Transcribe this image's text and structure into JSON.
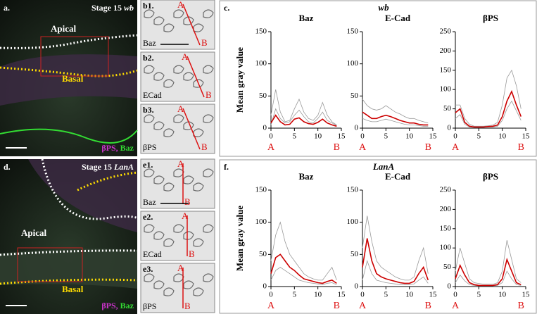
{
  "panels": {
    "a": {
      "label": "a.",
      "stage": "Stage 15",
      "genotype": "wb",
      "apical": "Apical",
      "basal": "Basal",
      "stains": [
        "βPS,",
        "Baz"
      ]
    },
    "d": {
      "label": "d.",
      "stage": "Stage 15",
      "genotype": "LanA",
      "apical": "Apical",
      "basal": "Basal",
      "stains": [
        "βPS,",
        "Baz"
      ]
    },
    "b": [
      {
        "label": "b1.",
        "stain": "Baz",
        "start": "A",
        "end": "B"
      },
      {
        "label": "b2.",
        "stain": "ECad",
        "start": "A",
        "end": "B"
      },
      {
        "label": "b3.",
        "stain": "βPS",
        "start": "A",
        "end": "B"
      }
    ],
    "e": [
      {
        "label": "e1.",
        "stain": "Baz",
        "start": "A",
        "end": "B"
      },
      {
        "label": "e2.",
        "stain": "ECad",
        "start": "A",
        "end": "B"
      },
      {
        "label": "e3.",
        "stain": "βPS",
        "start": "A",
        "end": "B"
      }
    ]
  },
  "plot_groups": [
    {
      "label": "c.",
      "title": "wb",
      "ylabel": "Mean gray value"
    },
    {
      "label": "f.",
      "title": "LanA",
      "ylabel": "Mean gray value"
    }
  ],
  "chart_data": [
    {
      "type": "line",
      "title": "Baz",
      "start_label": "A",
      "end_label": "B",
      "x": [
        0,
        1,
        2,
        3,
        4,
        5,
        6,
        7,
        8,
        9,
        10,
        11,
        12,
        13,
        14
      ],
      "xlim": [
        0,
        15
      ],
      "xticks": [
        0,
        5,
        10,
        15
      ],
      "ylim": [
        0,
        150
      ],
      "yticks": [
        0,
        50,
        100,
        150
      ],
      "series": [
        {
          "color": "#999999",
          "values": [
            20,
            60,
            25,
            10,
            12,
            30,
            45,
            25,
            15,
            12,
            20,
            40,
            20,
            10,
            5
          ]
        },
        {
          "color": "#999999",
          "values": [
            5,
            30,
            15,
            8,
            10,
            20,
            28,
            18,
            10,
            8,
            15,
            25,
            12,
            8,
            4
          ]
        },
        {
          "color": "#cc0000",
          "values": [
            8,
            20,
            10,
            5,
            6,
            14,
            16,
            10,
            7,
            6,
            9,
            14,
            8,
            5,
            3
          ]
        }
      ]
    },
    {
      "type": "line",
      "title": "E-Cad",
      "start_label": "A",
      "end_label": "B",
      "x": [
        0,
        1,
        2,
        3,
        4,
        5,
        6,
        7,
        8,
        9,
        10,
        11,
        12,
        13,
        14
      ],
      "xlim": [
        0,
        15
      ],
      "xticks": [
        0,
        5,
        10,
        15
      ],
      "ylim": [
        0,
        150
      ],
      "yticks": [
        0,
        50,
        100,
        150
      ],
      "series": [
        {
          "color": "#999999",
          "values": [
            45,
            35,
            30,
            28,
            30,
            35,
            30,
            25,
            22,
            18,
            15,
            15,
            12,
            10,
            8
          ]
        },
        {
          "color": "#999999",
          "values": [
            15,
            12,
            10,
            10,
            12,
            14,
            12,
            10,
            8,
            6,
            5,
            5,
            4,
            3,
            3
          ]
        },
        {
          "color": "#cc0000",
          "values": [
            25,
            20,
            15,
            15,
            18,
            20,
            18,
            15,
            12,
            10,
            8,
            8,
            6,
            5,
            5
          ]
        }
      ]
    },
    {
      "type": "line",
      "title": "βPS",
      "start_label": "A",
      "end_label": "B",
      "x": [
        0,
        1,
        2,
        3,
        4,
        5,
        6,
        7,
        8,
        9,
        10,
        11,
        12,
        13,
        14
      ],
      "xlim": [
        0,
        15
      ],
      "xticks": [
        0,
        5,
        10,
        15
      ],
      "ylim": [
        0,
        250
      ],
      "yticks": [
        0,
        50,
        100,
        150,
        200,
        250
      ],
      "series": [
        {
          "color": "#999999",
          "values": [
            60,
            60,
            25,
            10,
            5,
            5,
            5,
            6,
            8,
            15,
            60,
            130,
            150,
            110,
            50
          ]
        },
        {
          "color": "#999999",
          "values": [
            25,
            35,
            10,
            3,
            2,
            2,
            2,
            3,
            3,
            5,
            20,
            50,
            70,
            45,
            20
          ]
        },
        {
          "color": "#cc0000",
          "values": [
            40,
            50,
            15,
            5,
            3,
            3,
            3,
            4,
            5,
            8,
            30,
            70,
            95,
            60,
            30
          ]
        }
      ]
    },
    {
      "type": "line",
      "title": "Baz",
      "start_label": "A",
      "end_label": "B",
      "x": [
        0,
        1,
        2,
        3,
        4,
        5,
        6,
        7,
        8,
        9,
        10,
        11,
        12,
        13,
        14
      ],
      "xlim": [
        0,
        15
      ],
      "xticks": [
        0,
        5,
        10,
        15
      ],
      "ylim": [
        0,
        150
      ],
      "yticks": [
        0,
        50,
        100,
        150
      ],
      "series": [
        {
          "color": "#999999",
          "values": [
            40,
            80,
            100,
            70,
            50,
            40,
            30,
            20,
            15,
            12,
            10,
            10,
            20,
            30,
            10
          ]
        },
        {
          "color": "#999999",
          "values": [
            10,
            25,
            30,
            25,
            20,
            15,
            10,
            8,
            6,
            5,
            4,
            3,
            5,
            6,
            3
          ]
        },
        {
          "color": "#cc0000",
          "values": [
            20,
            45,
            50,
            40,
            30,
            25,
            18,
            12,
            10,
            8,
            6,
            5,
            8,
            10,
            5
          ]
        }
      ]
    },
    {
      "type": "line",
      "title": "E-Cad",
      "start_label": "A",
      "end_label": "B",
      "x": [
        0,
        1,
        2,
        3,
        4,
        5,
        6,
        7,
        8,
        9,
        10,
        11,
        12,
        13,
        14
      ],
      "xlim": [
        0,
        15
      ],
      "xticks": [
        0,
        5,
        10,
        15
      ],
      "ylim": [
        0,
        150
      ],
      "yticks": [
        0,
        50,
        100,
        150
      ],
      "series": [
        {
          "color": "#999999",
          "values": [
            60,
            110,
            70,
            40,
            30,
            25,
            20,
            15,
            12,
            10,
            10,
            15,
            40,
            60,
            20
          ]
        },
        {
          "color": "#999999",
          "values": [
            10,
            40,
            20,
            10,
            8,
            6,
            5,
            4,
            3,
            3,
            3,
            4,
            10,
            15,
            5
          ]
        },
        {
          "color": "#cc0000",
          "values": [
            30,
            75,
            40,
            20,
            15,
            12,
            10,
            8,
            6,
            5,
            5,
            8,
            20,
            30,
            10
          ]
        }
      ]
    },
    {
      "type": "line",
      "title": "βPS",
      "start_label": "A",
      "end_label": "B",
      "x": [
        0,
        1,
        2,
        3,
        4,
        5,
        6,
        7,
        8,
        9,
        10,
        11,
        12,
        13,
        14
      ],
      "xlim": [
        0,
        15
      ],
      "xticks": [
        0,
        5,
        10,
        15
      ],
      "ylim": [
        0,
        250
      ],
      "yticks": [
        0,
        50,
        100,
        150,
        200,
        250
      ],
      "series": [
        {
          "color": "#999999",
          "values": [
            40,
            100,
            60,
            20,
            10,
            8,
            6,
            6,
            6,
            10,
            40,
            120,
            70,
            20,
            10
          ]
        },
        {
          "color": "#999999",
          "values": [
            10,
            30,
            15,
            5,
            3,
            2,
            2,
            2,
            2,
            3,
            10,
            40,
            20,
            5,
            3
          ]
        },
        {
          "color": "#cc0000",
          "values": [
            20,
            55,
            30,
            10,
            5,
            3,
            3,
            3,
            3,
            5,
            20,
            70,
            40,
            10,
            5
          ]
        }
      ]
    }
  ]
}
